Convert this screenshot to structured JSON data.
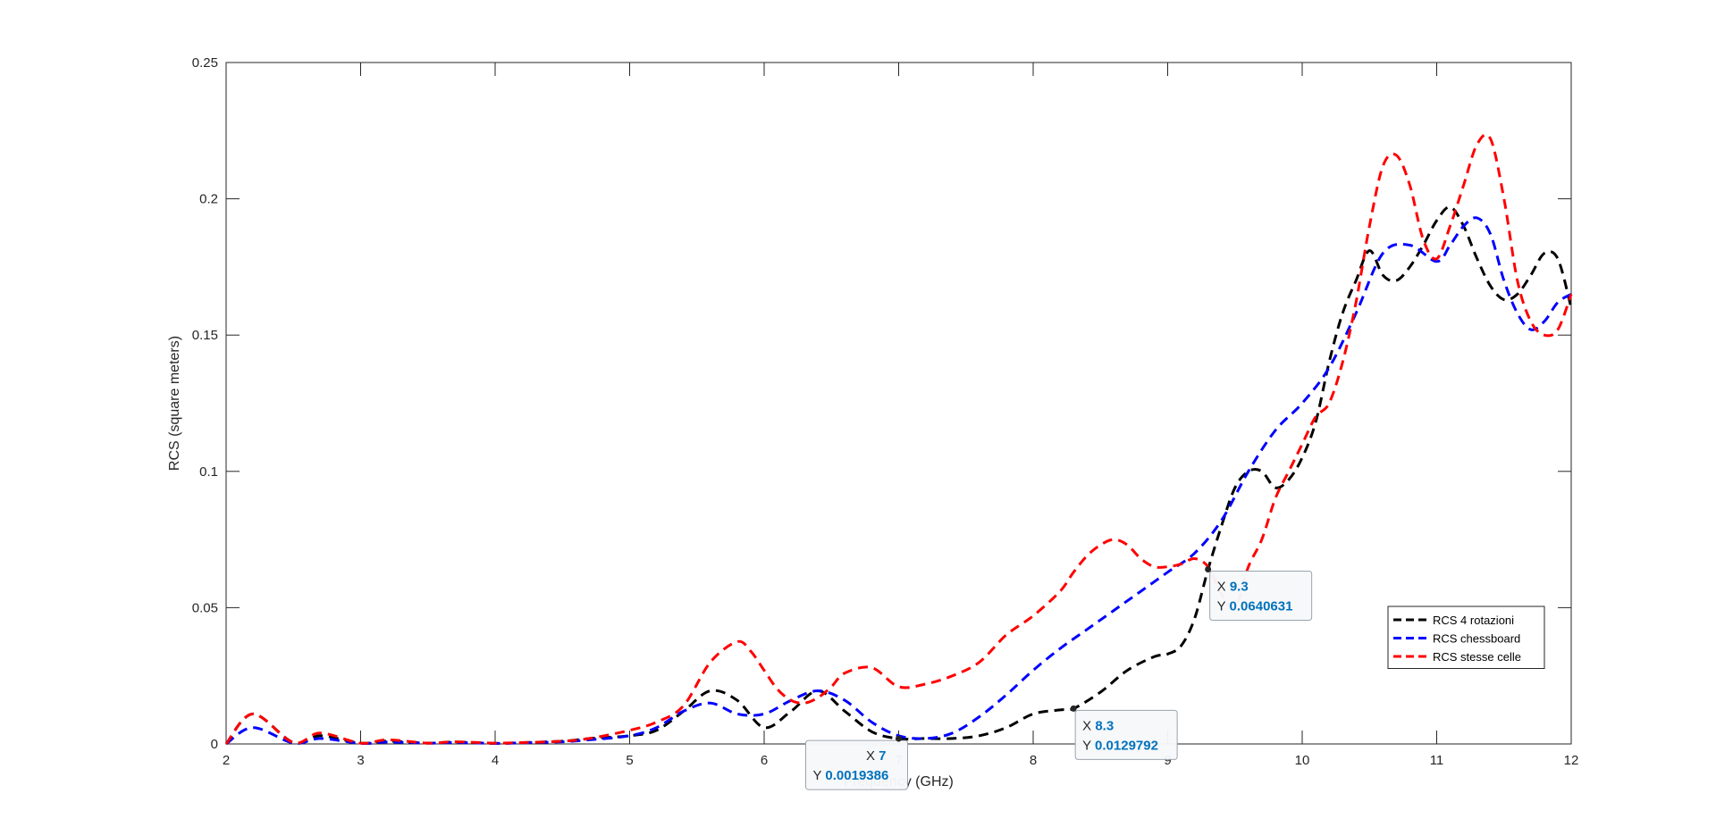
{
  "chart_data": {
    "type": "line",
    "title": "",
    "xlabel": "Frequency (GHz)",
    "ylabel": "RCS (square meters)",
    "xlim": [
      2,
      12
    ],
    "ylim": [
      0,
      0.25
    ],
    "x_ticks": [
      2,
      3,
      4,
      5,
      6,
      7,
      8,
      9,
      10,
      11,
      12
    ],
    "y_ticks": [
      0,
      0.05,
      0.1,
      0.15,
      0.2,
      0.25
    ],
    "x_tick_labels": [
      "2",
      "3",
      "4",
      "5",
      "6",
      "7",
      "8",
      "9",
      "10",
      "11",
      "12"
    ],
    "y_tick_labels": [
      "0",
      "0.05",
      "0.1",
      "0.15",
      "0.2",
      "0.25"
    ],
    "grid": false,
    "legend_position": "lower-right",
    "line_style": "dashed",
    "series": [
      {
        "name": "RCS 4 rotazioni",
        "color": "#000000",
        "x": [
          2,
          2.2,
          2.5,
          2.7,
          3,
          3.2,
          3.5,
          3.7,
          4,
          4.2,
          4.5,
          4.7,
          5,
          5.2,
          5.4,
          5.6,
          5.8,
          6,
          6.2,
          6.4,
          6.6,
          6.8,
          7,
          7.2,
          7.4,
          7.6,
          7.8,
          8,
          8.2,
          8.3,
          8.5,
          8.7,
          8.9,
          9,
          9.1,
          9.2,
          9.3,
          9.4,
          9.5,
          9.6,
          9.7,
          9.8,
          9.9,
          10,
          10.1,
          10.2,
          10.3,
          10.4,
          10.5,
          10.6,
          10.7,
          10.8,
          10.9,
          11,
          11.1,
          11.2,
          11.3,
          11.4,
          11.5,
          11.6,
          11.7,
          11.8,
          11.9,
          12
        ],
        "y": [
          0,
          0.011,
          0.0005,
          0.003,
          0.0003,
          0.001,
          0.0003,
          0.0007,
          0.0002,
          0.0005,
          0.001,
          0.002,
          0.003,
          0.005,
          0.012,
          0.0195,
          0.016,
          0.006,
          0.012,
          0.0195,
          0.012,
          0.0045,
          0.0019386,
          0.002,
          0.002,
          0.003,
          0.006,
          0.011,
          0.0125,
          0.0129792,
          0.019,
          0.027,
          0.032,
          0.033,
          0.036,
          0.046,
          0.0640631,
          0.08,
          0.094,
          0.1,
          0.1,
          0.094,
          0.097,
          0.105,
          0.118,
          0.14,
          0.158,
          0.17,
          0.181,
          0.172,
          0.17,
          0.175,
          0.183,
          0.192,
          0.197,
          0.19,
          0.178,
          0.168,
          0.163,
          0.165,
          0.172,
          0.18,
          0.178,
          0.16
        ]
      },
      {
        "name": "RCS chessboard",
        "color": "#0000ff",
        "x": [
          2,
          2.2,
          2.5,
          2.7,
          3,
          3.2,
          3.5,
          3.7,
          4,
          4.2,
          4.5,
          4.7,
          5,
          5.2,
          5.4,
          5.6,
          5.8,
          6,
          6.2,
          6.4,
          6.6,
          6.8,
          7,
          7.2,
          7.4,
          7.6,
          7.8,
          8,
          8.2,
          8.4,
          8.6,
          8.8,
          9,
          9.2,
          9.4,
          9.6,
          9.8,
          10,
          10.2,
          10.4,
          10.6,
          10.8,
          11,
          11.1,
          11.2,
          11.3,
          11.4,
          11.5,
          11.6,
          11.7,
          11.8,
          11.9,
          12
        ],
        "y": [
          0,
          0.006,
          0.0003,
          0.002,
          0.0002,
          0.0007,
          0.0003,
          0.0005,
          0.0002,
          0.0004,
          0.0008,
          0.0015,
          0.003,
          0.006,
          0.012,
          0.015,
          0.011,
          0.011,
          0.016,
          0.0195,
          0.016,
          0.008,
          0.003,
          0.002,
          0.004,
          0.01,
          0.018,
          0.027,
          0.035,
          0.042,
          0.049,
          0.056,
          0.063,
          0.07,
          0.082,
          0.1,
          0.115,
          0.125,
          0.138,
          0.158,
          0.18,
          0.183,
          0.177,
          0.183,
          0.19,
          0.193,
          0.187,
          0.17,
          0.158,
          0.152,
          0.155,
          0.162,
          0.165
        ]
      },
      {
        "name": "RCS stesse celle",
        "color": "#ff0000",
        "x": [
          2,
          2.2,
          2.5,
          2.7,
          3,
          3.2,
          3.5,
          3.7,
          4,
          4.2,
          4.5,
          4.7,
          5,
          5.2,
          5.4,
          5.6,
          5.8,
          5.9,
          6,
          6.1,
          6.2,
          6.3,
          6.4,
          6.5,
          6.6,
          6.8,
          7,
          7.2,
          7.4,
          7.6,
          7.8,
          8,
          8.2,
          8.3,
          8.4,
          8.5,
          8.6,
          8.7,
          8.8,
          8.9,
          9,
          9.1,
          9.2,
          9.3,
          9.4,
          9.5,
          9.6,
          9.7,
          9.8,
          9.9,
          10,
          10.1,
          10.2,
          10.3,
          10.4,
          10.5,
          10.6,
          10.7,
          10.8,
          10.9,
          11,
          11.1,
          11.2,
          11.3,
          11.4,
          11.5,
          11.6,
          11.7,
          11.8,
          11.9,
          12
        ],
        "y": [
          0,
          0.011,
          0.0005,
          0.004,
          0.0003,
          0.0015,
          0.0003,
          0.0008,
          0.0003,
          0.0005,
          0.001,
          0.002,
          0.005,
          0.008,
          0.014,
          0.03,
          0.0375,
          0.034,
          0.027,
          0.02,
          0.016,
          0.015,
          0.017,
          0.021,
          0.026,
          0.028,
          0.021,
          0.022,
          0.025,
          0.03,
          0.04,
          0.047,
          0.056,
          0.063,
          0.069,
          0.073,
          0.075,
          0.073,
          0.068,
          0.065,
          0.065,
          0.066,
          0.068,
          0.065,
          0.055,
          0.05,
          0.065,
          0.075,
          0.09,
          0.1,
          0.11,
          0.12,
          0.125,
          0.14,
          0.162,
          0.19,
          0.212,
          0.216,
          0.205,
          0.185,
          0.178,
          0.19,
          0.205,
          0.22,
          0.222,
          0.2,
          0.17,
          0.155,
          0.15,
          0.152,
          0.165
        ]
      }
    ],
    "annotations": [
      {
        "x": 7,
        "y": 0.0019386,
        "x_label": "X",
        "y_label": "Y",
        "x_text": "7",
        "y_text": "0.0019386",
        "box": "below-left"
      },
      {
        "x": 8.3,
        "y": 0.0129792,
        "x_label": "X",
        "y_label": "Y",
        "x_text": "8.3",
        "y_text": "0.0129792",
        "box": "below-right"
      },
      {
        "x": 9.3,
        "y": 0.0640631,
        "x_label": "X",
        "y_label": "Y",
        "x_text": "9.3",
        "y_text": "0.0640631",
        "box": "right"
      }
    ],
    "datatip_value_color": "#0072bd"
  }
}
